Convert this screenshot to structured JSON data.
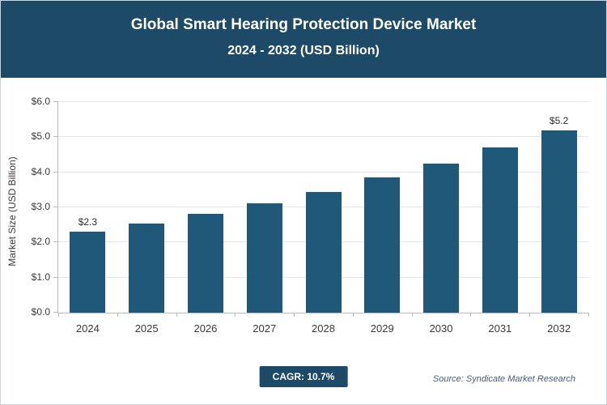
{
  "header": {
    "title_line1": "Global Smart Hearing Protection Device Market",
    "title_line2": "2024 - 2032 (USD Billion)"
  },
  "chart_data": {
    "type": "bar",
    "categories": [
      "2024",
      "2025",
      "2026",
      "2027",
      "2028",
      "2029",
      "2030",
      "2031",
      "2032"
    ],
    "values": [
      2.3,
      2.55,
      2.82,
      3.12,
      3.45,
      3.85,
      4.25,
      4.7,
      5.2
    ],
    "bar_labels": [
      "$2.3",
      "",
      "",
      "",
      "",
      "",
      "",
      "",
      "$5.2"
    ],
    "title": "Global Smart Hearing Protection Device Market 2024 - 2032 (USD Billion)",
    "xlabel": "",
    "ylabel": "Market Size (USD Billion)",
    "ylim": [
      0,
      6
    ],
    "ytick_step": 1,
    "ytick_labels": [
      "$0.0",
      "$1.0",
      "$2.0",
      "$3.0",
      "$4.0",
      "$5.0",
      "$6.0"
    ],
    "grid": true,
    "legend": "none",
    "bar_color": "#1f5878"
  },
  "footer": {
    "cagr_label": "CAGR: 10.7%",
    "source": "Source: Syndicate Market Research"
  },
  "colors": {
    "header_bg": "#1d4a66",
    "accent": "#1d4a66",
    "bar": "#1f5878"
  }
}
